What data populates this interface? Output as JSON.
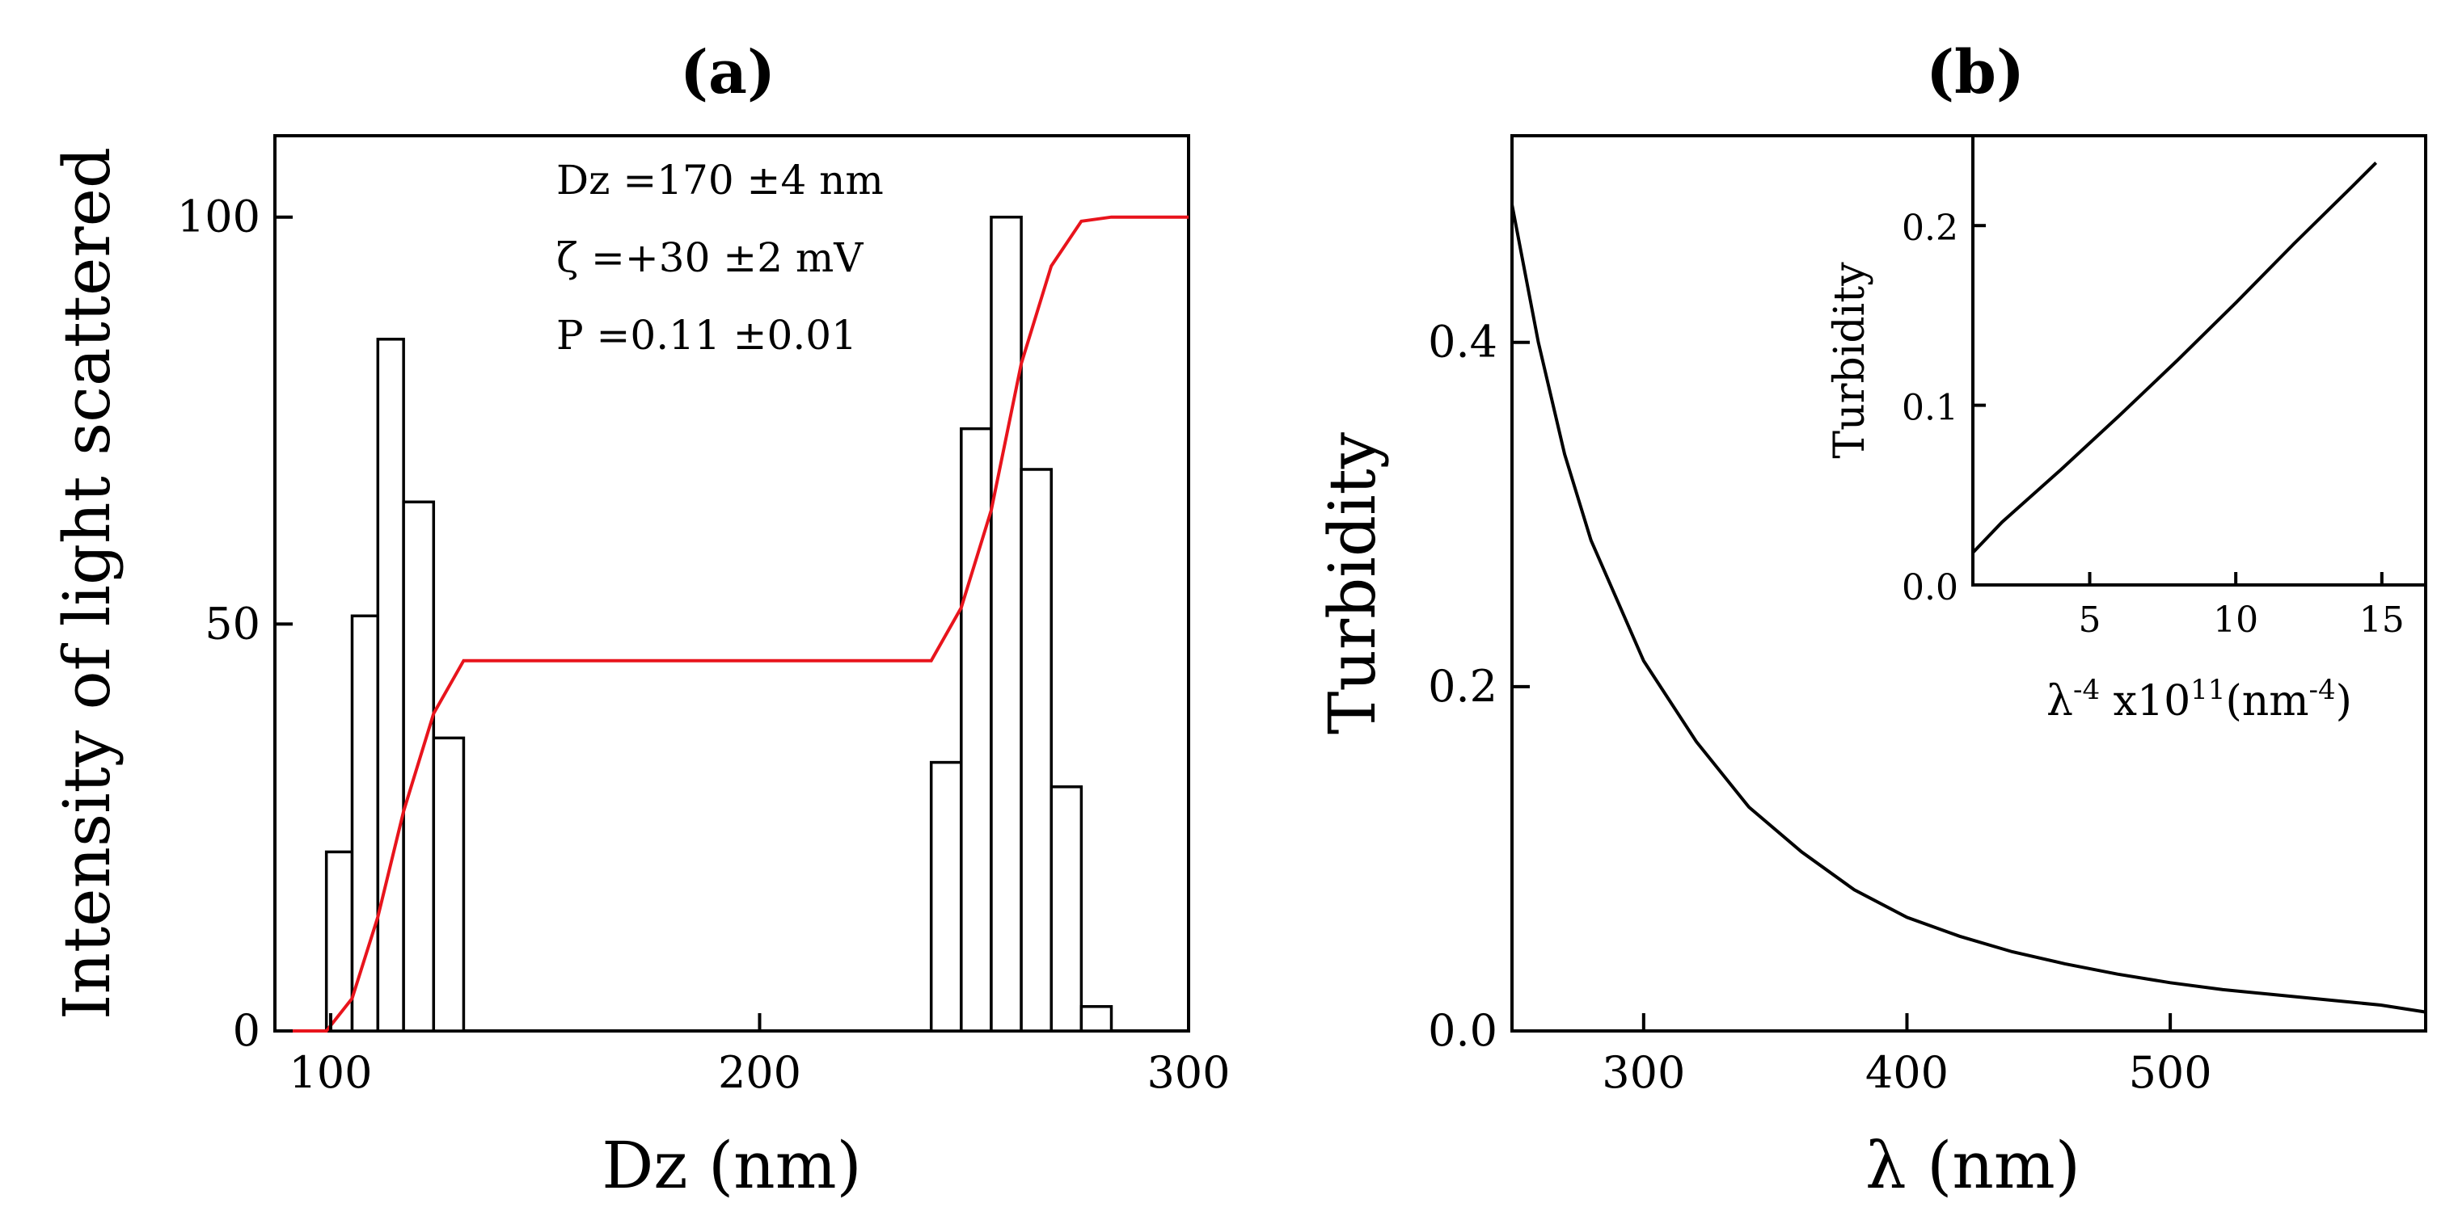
{
  "chart_data": [
    {
      "panel": "(a)",
      "type": "bar",
      "xlabel": "Dz (nm)",
      "ylabel": "Intensity of light scattered",
      "xlim": [
        87,
        300
      ],
      "ylim": [
        0,
        110
      ],
      "xticks": [
        100,
        200,
        300
      ],
      "yticks": [
        0,
        50,
        100
      ],
      "grid": false,
      "annotations": [
        "Dz =170 ±4 nm",
        "ζ =+30 ±2 mV",
        "P =0.11 ±0.01"
      ],
      "bars": [
        {
          "x0": 99,
          "x1": 105,
          "value": 22
        },
        {
          "x0": 105,
          "x1": 111,
          "value": 51
        },
        {
          "x0": 111,
          "x1": 117,
          "value": 85
        },
        {
          "x0": 117,
          "x1": 124,
          "value": 65
        },
        {
          "x0": 124,
          "x1": 131,
          "value": 36
        },
        {
          "x0": 240,
          "x1": 247,
          "value": 33
        },
        {
          "x0": 247,
          "x1": 254,
          "value": 74
        },
        {
          "x0": 254,
          "x1": 261,
          "value": 100
        },
        {
          "x0": 261,
          "x1": 268,
          "value": 69
        },
        {
          "x0": 268,
          "x1": 275,
          "value": 30
        },
        {
          "x0": 275,
          "x1": 282,
          "value": 3
        }
      ],
      "series": [
        {
          "color": "#e8141c",
          "x": [
            87,
            99,
            105,
            111,
            117,
            124,
            131,
            240,
            247,
            254,
            261,
            268,
            275,
            282,
            288,
            300
          ],
          "y": [
            0,
            0,
            4,
            14,
            27,
            39,
            45.5,
            45.5,
            52,
            64,
            82,
            94,
            99.5,
            100,
            100,
            100
          ]
        }
      ]
    },
    {
      "panel": "(b)",
      "type": "line",
      "xlabel": "λ (nm)",
      "ylabel": "Turbidity",
      "xlim": [
        250,
        597
      ],
      "ylim": [
        0,
        0.52
      ],
      "xticks": [
        300,
        400,
        500
      ],
      "yticks": [
        0.0,
        0.2,
        0.4
      ],
      "grid": false,
      "series": [
        {
          "color": "#000000",
          "x": [
            250,
            260,
            270,
            280,
            290,
            300,
            320,
            340,
            360,
            380,
            400,
            420,
            440,
            460,
            480,
            500,
            520,
            540,
            560,
            580,
            597
          ],
          "y": [
            0.48,
            0.4,
            0.335,
            0.285,
            0.25,
            0.215,
            0.168,
            0.13,
            0.104,
            0.082,
            0.066,
            0.055,
            0.046,
            0.039,
            0.033,
            0.028,
            0.024,
            0.021,
            0.018,
            0.015,
            0.011
          ]
        }
      ],
      "inset": {
        "type": "line",
        "xlabel": "λ-4 x1011(nm-4)",
        "ylabel": "Turbidity",
        "xlim": [
          1,
          16.5
        ],
        "ylim": [
          0,
          0.25
        ],
        "xticks": [
          5,
          10,
          15
        ],
        "yticks": [
          0.0,
          0.1,
          0.2
        ],
        "series": [
          {
            "color": "#000000",
            "x": [
              1.0,
              2.0,
              4.0,
              6.0,
              8.0,
              10.0,
              12.0,
              14.0,
              14.8
            ],
            "y": [
              0.018,
              0.035,
              0.064,
              0.094,
              0.125,
              0.157,
              0.19,
              0.222,
              0.235
            ]
          }
        ]
      }
    }
  ]
}
